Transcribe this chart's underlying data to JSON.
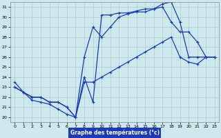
{
  "xlabel": "Graphe des températures (°c)",
  "bg_color": "#cce8ec",
  "grid_color": "#aacccc",
  "line_color": "#1a3ab8",
  "xlim": [
    -0.5,
    23.5
  ],
  "ylim": [
    19.5,
    31.5
  ],
  "yticks": [
    20,
    21,
    22,
    23,
    24,
    25,
    26,
    27,
    28,
    29,
    30,
    31
  ],
  "xticks": [
    0,
    1,
    2,
    3,
    4,
    5,
    6,
    7,
    8,
    9,
    10,
    11,
    12,
    13,
    14,
    15,
    16,
    17,
    18,
    19,
    20,
    21,
    22,
    23
  ],
  "line1_x": [
    0,
    1,
    2,
    3,
    4,
    5,
    6,
    7,
    8,
    9,
    10,
    11,
    12,
    13,
    14,
    15,
    16,
    17,
    18,
    19,
    20,
    21,
    22,
    23
  ],
  "line1_y": [
    23.5,
    22.5,
    21.7,
    21.5,
    21.3,
    20.8,
    20.3,
    20.0,
    24.0,
    21.5,
    30.2,
    30.2,
    30.4,
    30.4,
    30.6,
    30.8,
    30.8,
    31.3,
    31.5,
    29.5,
    26.0,
    26.0,
    26.0,
    26.0
  ],
  "line2_x": [
    0,
    1,
    2,
    3,
    4,
    5,
    6,
    7,
    8,
    9,
    10,
    11,
    12,
    13,
    14,
    15,
    16,
    17,
    18,
    19,
    20,
    21,
    22,
    23
  ],
  "line2_y": [
    23.0,
    22.5,
    22.0,
    22.0,
    21.5,
    21.5,
    21.0,
    20.0,
    26.0,
    29.0,
    28.0,
    29.0,
    30.0,
    30.3,
    30.5,
    30.5,
    30.8,
    31.0,
    29.5,
    28.5,
    28.5,
    27.5,
    26.0,
    26.0
  ],
  "line3_x": [
    0,
    1,
    2,
    3,
    4,
    5,
    6,
    7,
    8,
    9,
    10,
    11,
    12,
    13,
    14,
    15,
    16,
    17,
    18,
    19,
    20,
    21,
    22,
    23
  ],
  "line3_y": [
    23.0,
    22.5,
    22.0,
    22.0,
    21.5,
    21.5,
    21.0,
    20.0,
    23.5,
    23.5,
    24.0,
    24.5,
    25.0,
    25.5,
    26.0,
    26.5,
    27.0,
    27.5,
    28.0,
    26.0,
    25.5,
    25.3,
    26.0,
    26.0
  ]
}
